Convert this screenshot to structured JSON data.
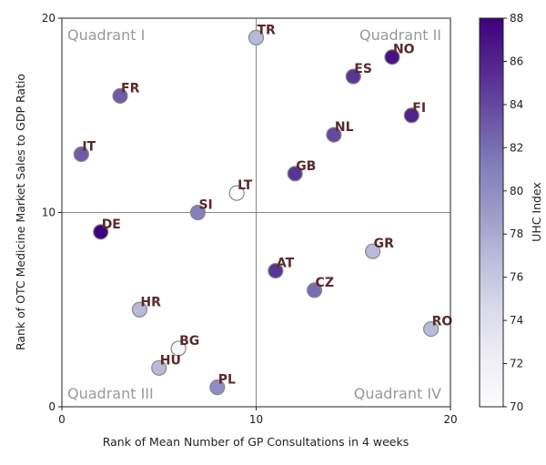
{
  "chart_data": {
    "type": "scatter",
    "title": "",
    "xlabel": "Rank of Mean Number of GP Consultations in 4 weeks",
    "ylabel": "Rank of OTC Medicine Market Sales to GDP Ratio",
    "xlim": [
      0,
      20
    ],
    "ylim": [
      0,
      20
    ],
    "xticks": [
      0,
      10,
      20
    ],
    "yticks": [
      0,
      10,
      20
    ],
    "reference_lines": {
      "x": 10,
      "y": 10
    },
    "quadrant_labels": [
      "Quadrant I",
      "Quadrant II",
      "Quadrant III",
      "Quadrant IV"
    ],
    "colorbar": {
      "label": "UHC Index",
      "range": [
        70,
        88
      ],
      "ticks": [
        70,
        72,
        74,
        76,
        78,
        80,
        82,
        84,
        86,
        88
      ],
      "colormap": [
        "#fcfbfd",
        "#efedf5",
        "#dadaeb",
        "#bcbddc",
        "#9e9ac8",
        "#807dba",
        "#6a51a3",
        "#54278f",
        "#3f007d"
      ]
    },
    "points": [
      {
        "label": "TR",
        "x": 10,
        "y": 19,
        "uhc": 77
      },
      {
        "label": "NO",
        "x": 17,
        "y": 18,
        "uhc": 87
      },
      {
        "label": "ES",
        "x": 15,
        "y": 17,
        "uhc": 85
      },
      {
        "label": "FR",
        "x": 3,
        "y": 16,
        "uhc": 83
      },
      {
        "label": "FI",
        "x": 18,
        "y": 15,
        "uhc": 86
      },
      {
        "label": "NL",
        "x": 14,
        "y": 14,
        "uhc": 84
      },
      {
        "label": "IT",
        "x": 1,
        "y": 13,
        "uhc": 83
      },
      {
        "label": "GB",
        "x": 12,
        "y": 12,
        "uhc": 85
      },
      {
        "label": "LT",
        "x": 9,
        "y": 11,
        "uhc": 70
      },
      {
        "label": "SI",
        "x": 7,
        "y": 10,
        "uhc": 81
      },
      {
        "label": "DE",
        "x": 2,
        "y": 9,
        "uhc": 88
      },
      {
        "label": "GR",
        "x": 16,
        "y": 8,
        "uhc": 77
      },
      {
        "label": "AT",
        "x": 11,
        "y": 7,
        "uhc": 85
      },
      {
        "label": "CZ",
        "x": 13,
        "y": 6,
        "uhc": 82
      },
      {
        "label": "HR",
        "x": 4,
        "y": 5,
        "uhc": 77
      },
      {
        "label": "RO",
        "x": 19,
        "y": 4,
        "uhc": 77
      },
      {
        "label": "BG",
        "x": 6,
        "y": 3,
        "uhc": 71
      },
      {
        "label": "HU",
        "x": 5,
        "y": 2,
        "uhc": 77
      },
      {
        "label": "PL",
        "x": 8,
        "y": 1,
        "uhc": 80
      }
    ]
  }
}
